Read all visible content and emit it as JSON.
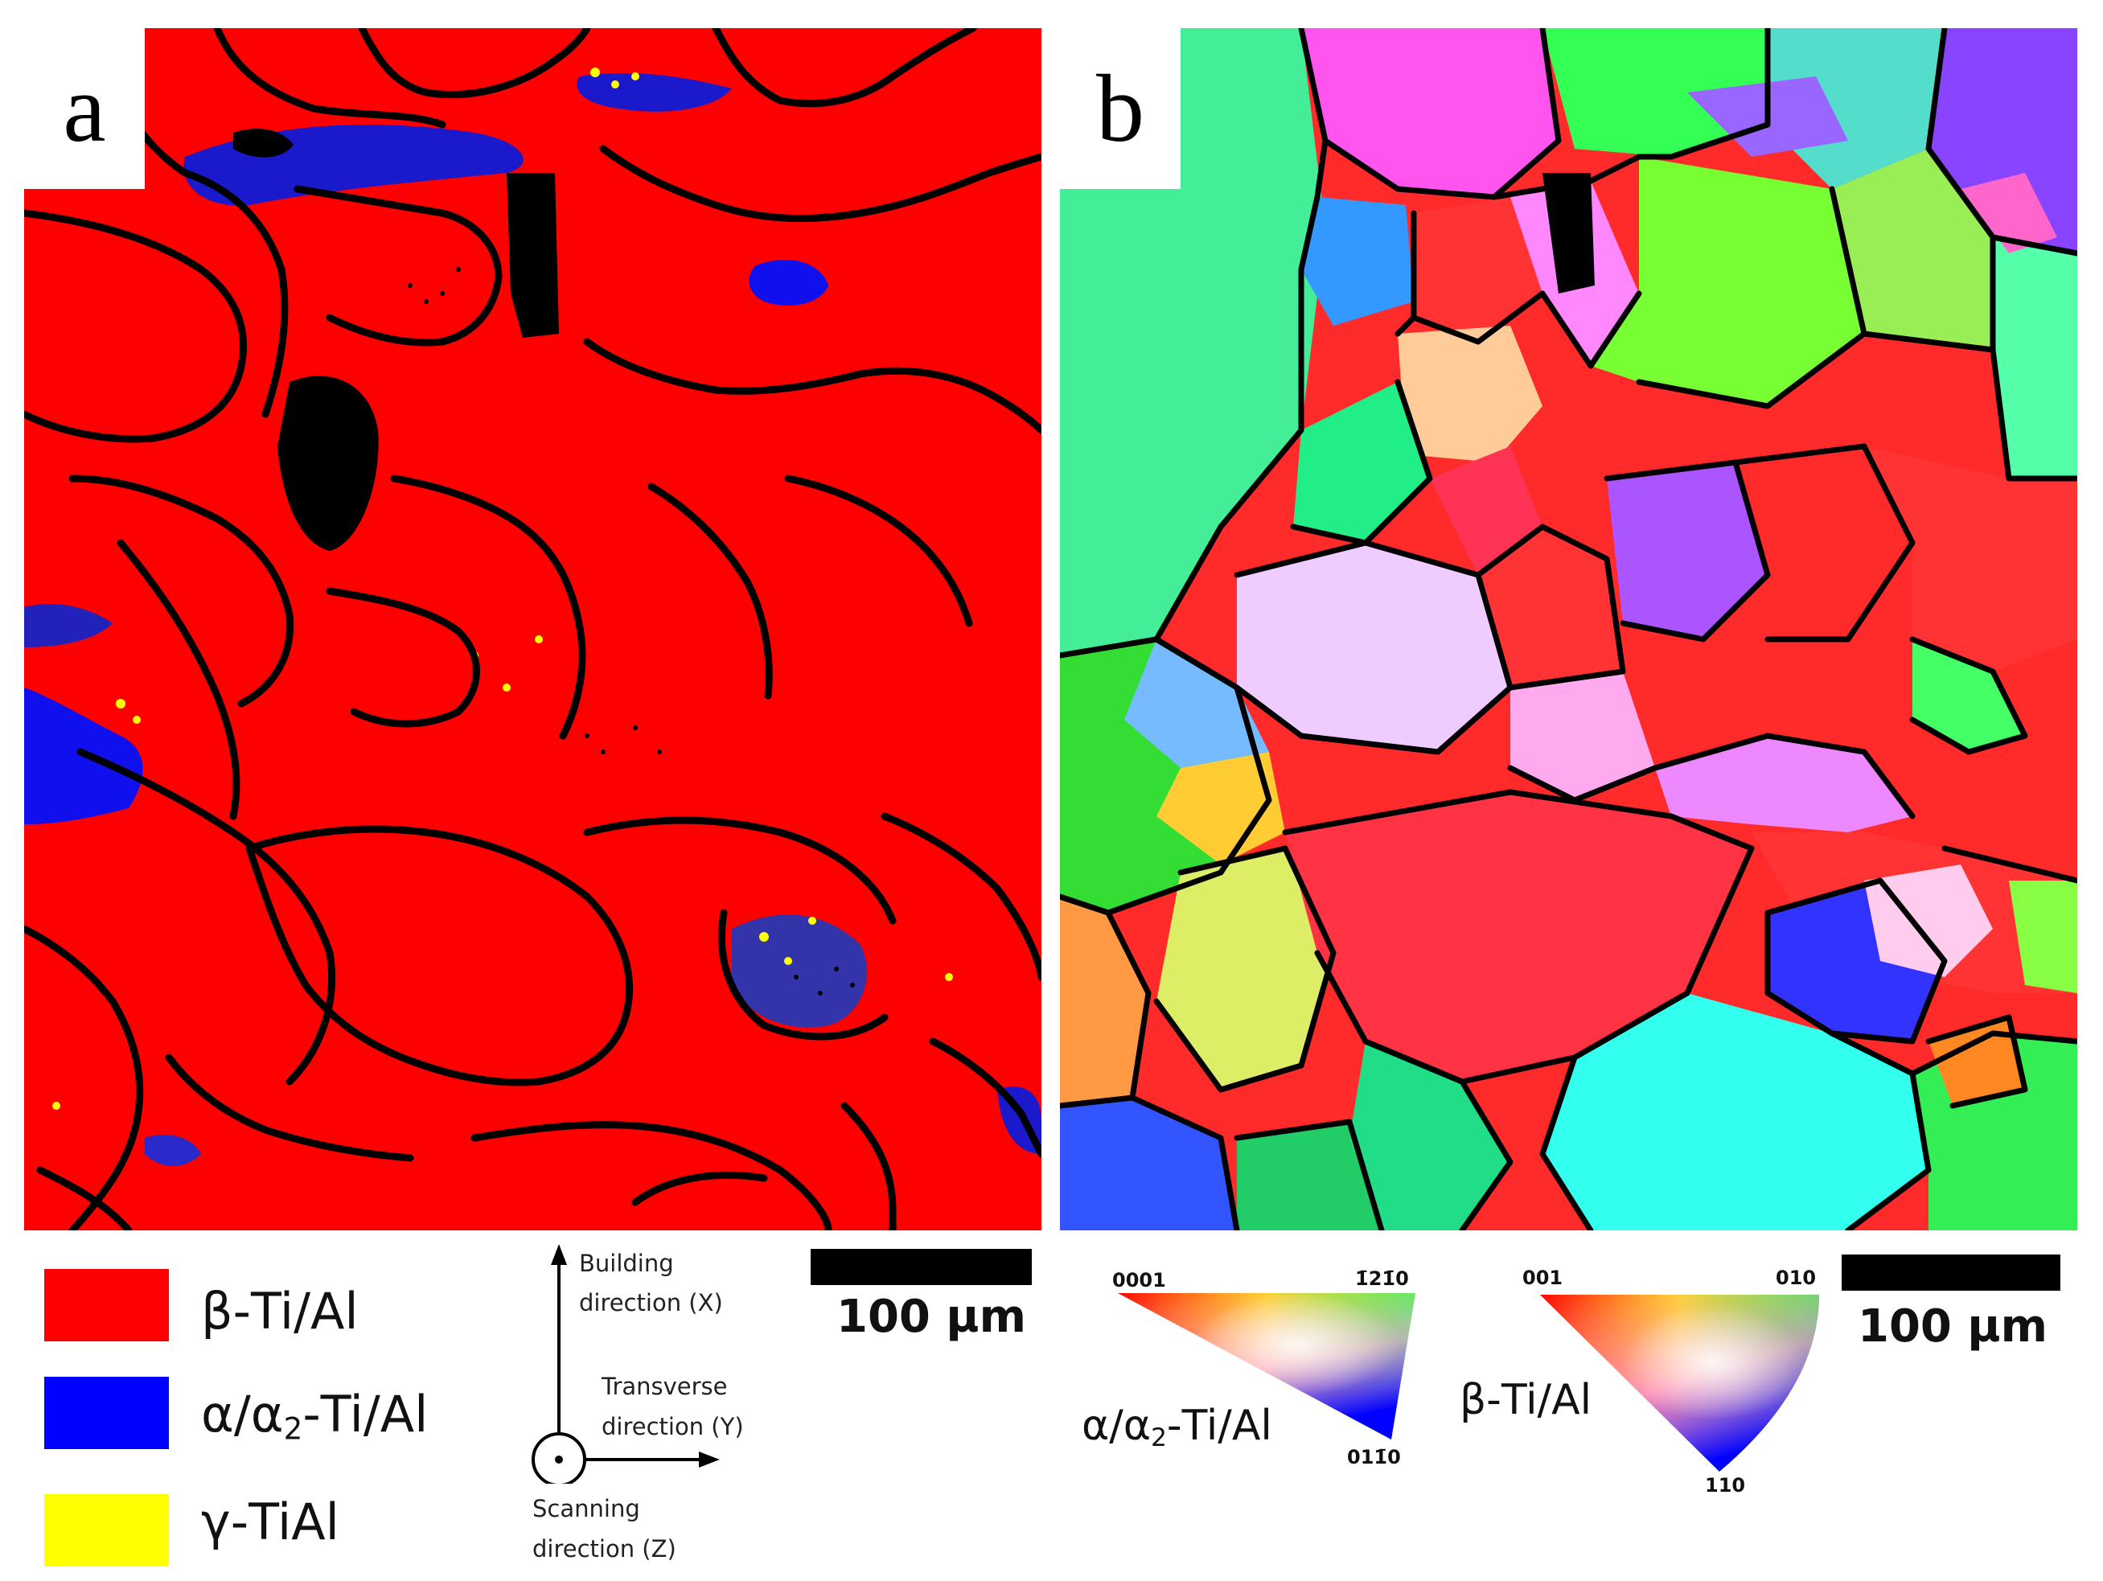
{
  "panels": {
    "a": {
      "label": "a"
    },
    "b": {
      "label": "b"
    }
  },
  "phase_legend": [
    {
      "label": "β-Ti/Al",
      "color": "#ff0000"
    },
    {
      "label_base": "α/α",
      "label_sub": "2",
      "label_rest": "-Ti/Al",
      "color": "#0000ff"
    },
    {
      "label": "γ-TiAl",
      "color": "#ffff00"
    }
  ],
  "axes": {
    "building": {
      "line1": "Building",
      "line2": "direction (X)"
    },
    "transverse": {
      "line1": "Transverse",
      "line2": "direction (Y)"
    },
    "scanning": {
      "line1": "Scanning",
      "line2": "direction (Z)"
    }
  },
  "scalebars": {
    "a": {
      "label": "100 µm"
    },
    "b": {
      "label": "100 µm"
    }
  },
  "ipf": {
    "alpha": {
      "phase_base": "α/α",
      "phase_sub": "2",
      "phase_rest": "-Ti/Al",
      "corner_top_left": "0001",
      "corner_top_right": "1̄21̄0",
      "corner_bottom": "011̄0"
    },
    "beta": {
      "phase": "β-Ti/Al",
      "corner_top_left": "001",
      "corner_top_right": "010",
      "corner_bottom": "110"
    }
  },
  "colors": {
    "beta": "#ff0000",
    "alpha": "#0000ff",
    "gamma": "#ffff00",
    "boundary": "#000000"
  }
}
